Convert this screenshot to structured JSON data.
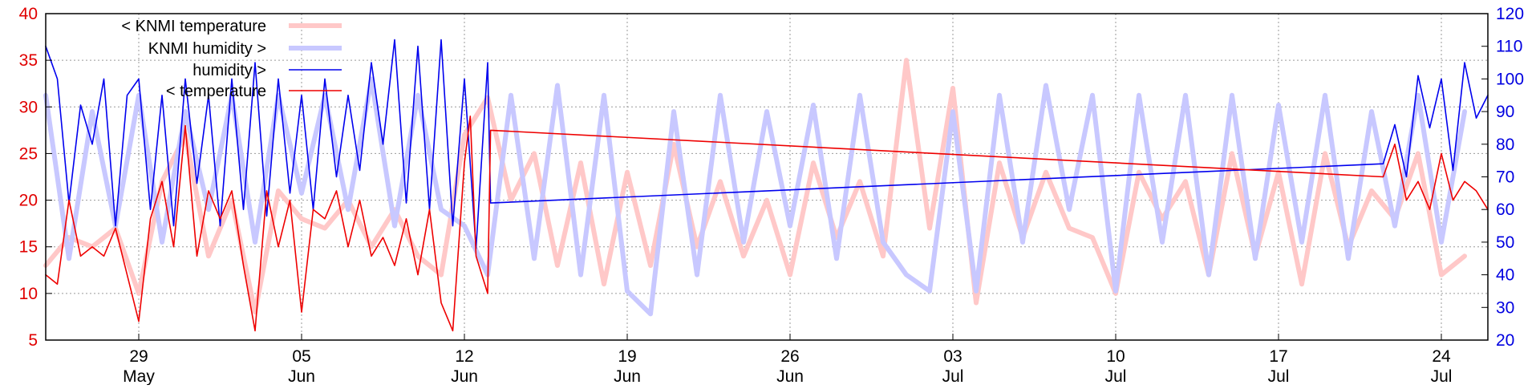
{
  "chart_data": {
    "type": "line",
    "title": "",
    "xlabel": "",
    "ylabel_left": "",
    "ylabel_right": "",
    "ylim_left": [
      5,
      40
    ],
    "ylim_right": [
      20,
      120
    ],
    "yticks_left": [
      5,
      10,
      15,
      20,
      25,
      30,
      35,
      40
    ],
    "yticks_right": [
      20,
      30,
      40,
      50,
      60,
      70,
      80,
      90,
      100,
      110,
      120
    ],
    "xlim": [
      "2023-05-25",
      "2023-07-26"
    ],
    "xticks": [
      {
        "date": "2023-05-29",
        "day": "29",
        "month": "May"
      },
      {
        "date": "2023-06-05",
        "day": "05",
        "month": "Jun"
      },
      {
        "date": "2023-06-12",
        "day": "12",
        "month": "Jun"
      },
      {
        "date": "2023-06-19",
        "day": "19",
        "month": "Jun"
      },
      {
        "date": "2023-06-26",
        "day": "26",
        "month": "Jun"
      },
      {
        "date": "2023-07-03",
        "day": "03",
        "month": "Jul"
      },
      {
        "date": "2023-07-10",
        "day": "10",
        "month": "Jul"
      },
      {
        "date": "2023-07-17",
        "day": "17",
        "month": "Jul"
      },
      {
        "date": "2023-07-24",
        "day": "24",
        "month": "Jul"
      }
    ],
    "grid": true,
    "legend_position": "top-left",
    "series": [
      {
        "name": "< KNMI temperature",
        "axis": "left",
        "color": "#ffc8c8",
        "width": "thick",
        "points": [
          [
            "2023-05-25T00",
            13
          ],
          [
            "2023-05-26T00",
            16
          ],
          [
            "2023-05-27T00",
            15
          ],
          [
            "2023-05-28T00",
            17
          ],
          [
            "2023-05-29T00",
            10
          ],
          [
            "2023-05-30T00",
            22
          ],
          [
            "2023-05-31T00",
            27
          ],
          [
            "2023-06-01T00",
            14
          ],
          [
            "2023-06-02T00",
            20
          ],
          [
            "2023-06-03T00",
            8
          ],
          [
            "2023-06-04T00",
            21
          ],
          [
            "2023-06-05T00",
            18
          ],
          [
            "2023-06-06T00",
            17
          ],
          [
            "2023-06-07T00",
            20
          ],
          [
            "2023-06-08T00",
            15
          ],
          [
            "2023-06-09T00",
            19
          ],
          [
            "2023-06-10T00",
            14
          ],
          [
            "2023-06-11T00",
            12
          ],
          [
            "2023-06-12T00",
            27
          ],
          [
            "2023-06-13T00",
            31
          ],
          [
            "2023-06-14T00",
            20
          ],
          [
            "2023-06-15T00",
            25
          ],
          [
            "2023-06-16T00",
            13
          ],
          [
            "2023-06-17T00",
            24
          ],
          [
            "2023-06-18T00",
            11
          ],
          [
            "2023-06-19T00",
            23
          ],
          [
            "2023-06-20T00",
            13
          ],
          [
            "2023-06-21T00",
            26
          ],
          [
            "2023-06-22T00",
            15
          ],
          [
            "2023-06-23T00",
            22
          ],
          [
            "2023-06-24T00",
            14
          ],
          [
            "2023-06-25T00",
            20
          ],
          [
            "2023-06-26T00",
            12
          ],
          [
            "2023-06-27T00",
            24
          ],
          [
            "2023-06-28T00",
            16
          ],
          [
            "2023-06-29T00",
            22
          ],
          [
            "2023-06-30T00",
            14
          ],
          [
            "2023-07-01T00",
            35
          ],
          [
            "2023-07-02T00",
            17
          ],
          [
            "2023-07-03T00",
            32
          ],
          [
            "2023-07-04T00",
            9
          ],
          [
            "2023-07-05T00",
            24
          ],
          [
            "2023-07-06T00",
            16
          ],
          [
            "2023-07-07T00",
            23
          ],
          [
            "2023-07-08T00",
            17
          ],
          [
            "2023-07-09T00",
            16
          ],
          [
            "2023-07-10T00",
            10
          ],
          [
            "2023-07-11T00",
            23
          ],
          [
            "2023-07-12T00",
            18
          ],
          [
            "2023-07-13T00",
            22
          ],
          [
            "2023-07-14T00",
            12
          ],
          [
            "2023-07-15T00",
            25
          ],
          [
            "2023-07-16T00",
            14
          ],
          [
            "2023-07-17T00",
            23
          ],
          [
            "2023-07-18T00",
            11
          ],
          [
            "2023-07-19T00",
            25
          ],
          [
            "2023-07-20T00",
            15
          ],
          [
            "2023-07-21T00",
            21
          ],
          [
            "2023-07-22T00",
            18
          ],
          [
            "2023-07-23T00",
            25
          ],
          [
            "2023-07-24T00",
            12
          ],
          [
            "2023-07-25T00",
            14
          ]
        ]
      },
      {
        "name": "KNMI humidity >",
        "axis": "right",
        "color": "#c8c8ff",
        "width": "thick",
        "points": [
          [
            "2023-05-25T00",
            95
          ],
          [
            "2023-05-26T00",
            45
          ],
          [
            "2023-05-27T00",
            90
          ],
          [
            "2023-05-28T00",
            55
          ],
          [
            "2023-05-29T00",
            95
          ],
          [
            "2023-05-30T00",
            50
          ],
          [
            "2023-05-31T00",
            90
          ],
          [
            "2023-06-01T00",
            60
          ],
          [
            "2023-06-02T00",
            95
          ],
          [
            "2023-06-03T00",
            50
          ],
          [
            "2023-06-04T00",
            95
          ],
          [
            "2023-06-05T00",
            65
          ],
          [
            "2023-06-06T00",
            95
          ],
          [
            "2023-06-07T00",
            60
          ],
          [
            "2023-06-08T00",
            100
          ],
          [
            "2023-06-09T00",
            55
          ],
          [
            "2023-06-10T00",
            95
          ],
          [
            "2023-06-11T00",
            60
          ],
          [
            "2023-06-12T00",
            55
          ],
          [
            "2023-06-13T00",
            40
          ],
          [
            "2023-06-14T00",
            95
          ],
          [
            "2023-06-15T00",
            45
          ],
          [
            "2023-06-16T00",
            98
          ],
          [
            "2023-06-17T00",
            40
          ],
          [
            "2023-06-18T00",
            95
          ],
          [
            "2023-06-19T00",
            35
          ],
          [
            "2023-06-20T00",
            28
          ],
          [
            "2023-06-21T00",
            90
          ],
          [
            "2023-06-22T00",
            40
          ],
          [
            "2023-06-23T00",
            95
          ],
          [
            "2023-06-24T00",
            50
          ],
          [
            "2023-06-25T00",
            90
          ],
          [
            "2023-06-26T00",
            55
          ],
          [
            "2023-06-27T00",
            92
          ],
          [
            "2023-06-28T00",
            45
          ],
          [
            "2023-06-29T00",
            95
          ],
          [
            "2023-06-30T00",
            50
          ],
          [
            "2023-07-01T00",
            40
          ],
          [
            "2023-07-02T00",
            35
          ],
          [
            "2023-07-03T00",
            90
          ],
          [
            "2023-07-04T00",
            35
          ],
          [
            "2023-07-05T00",
            95
          ],
          [
            "2023-07-06T00",
            50
          ],
          [
            "2023-07-07T00",
            98
          ],
          [
            "2023-07-08T00",
            60
          ],
          [
            "2023-07-09T00",
            95
          ],
          [
            "2023-07-10T00",
            35
          ],
          [
            "2023-07-11T00",
            95
          ],
          [
            "2023-07-12T00",
            50
          ],
          [
            "2023-07-13T00",
            95
          ],
          [
            "2023-07-14T00",
            40
          ],
          [
            "2023-07-15T00",
            95
          ],
          [
            "2023-07-16T00",
            45
          ],
          [
            "2023-07-17T00",
            92
          ],
          [
            "2023-07-18T00",
            50
          ],
          [
            "2023-07-19T00",
            95
          ],
          [
            "2023-07-20T00",
            45
          ],
          [
            "2023-07-21T00",
            90
          ],
          [
            "2023-07-22T00",
            55
          ],
          [
            "2023-07-23T00",
            95
          ],
          [
            "2023-07-24T00",
            50
          ],
          [
            "2023-07-25T00",
            90
          ]
        ]
      },
      {
        "name": "humidity >",
        "axis": "right",
        "color": "#0000ee",
        "width": "thin",
        "points": [
          [
            "2023-05-25T00",
            110
          ],
          [
            "2023-05-25T12",
            100
          ],
          [
            "2023-05-26T00",
            62
          ],
          [
            "2023-05-26T12",
            92
          ],
          [
            "2023-05-27T00",
            80
          ],
          [
            "2023-05-27T12",
            100
          ],
          [
            "2023-05-28T00",
            55
          ],
          [
            "2023-05-28T12",
            95
          ],
          [
            "2023-05-29T00",
            100
          ],
          [
            "2023-05-29T12",
            60
          ],
          [
            "2023-05-30T00",
            95
          ],
          [
            "2023-05-30T12",
            55
          ],
          [
            "2023-05-31T00",
            100
          ],
          [
            "2023-05-31T12",
            68
          ],
          [
            "2023-06-01T00",
            95
          ],
          [
            "2023-06-01T12",
            55
          ],
          [
            "2023-06-02T00",
            100
          ],
          [
            "2023-06-02T12",
            60
          ],
          [
            "2023-06-03T00",
            105
          ],
          [
            "2023-06-03T12",
            58
          ],
          [
            "2023-06-04T00",
            100
          ],
          [
            "2023-06-04T12",
            65
          ],
          [
            "2023-06-05T00",
            95
          ],
          [
            "2023-06-05T12",
            60
          ],
          [
            "2023-06-06T00",
            100
          ],
          [
            "2023-06-06T12",
            70
          ],
          [
            "2023-06-07T00",
            95
          ],
          [
            "2023-06-07T12",
            72
          ],
          [
            "2023-06-08T00",
            105
          ],
          [
            "2023-06-08T12",
            80
          ],
          [
            "2023-06-09T00",
            112
          ],
          [
            "2023-06-09T12",
            62
          ],
          [
            "2023-06-10T00",
            110
          ],
          [
            "2023-06-10T12",
            60
          ],
          [
            "2023-06-11T00",
            112
          ],
          [
            "2023-06-11T12",
            55
          ],
          [
            "2023-06-12T00",
            100
          ],
          [
            "2023-06-12T12",
            48
          ],
          [
            "2023-06-13T00",
            105
          ],
          [
            "2023-06-13T03",
            62
          ],
          [
            "2023-07-21T12",
            74
          ],
          [
            "2023-07-22T00",
            86
          ],
          [
            "2023-07-22T12",
            70
          ],
          [
            "2023-07-23T00",
            101
          ],
          [
            "2023-07-23T12",
            85
          ],
          [
            "2023-07-24T00",
            100
          ],
          [
            "2023-07-24T12",
            72
          ],
          [
            "2023-07-25T00",
            105
          ],
          [
            "2023-07-25T12",
            88
          ],
          [
            "2023-07-26T00",
            95
          ]
        ]
      },
      {
        "name": "< temperature",
        "axis": "left",
        "color": "#ee0000",
        "width": "thin",
        "points": [
          [
            "2023-05-25T00",
            12
          ],
          [
            "2023-05-25T12",
            11
          ],
          [
            "2023-05-26T00",
            20
          ],
          [
            "2023-05-26T12",
            14
          ],
          [
            "2023-05-27T00",
            15
          ],
          [
            "2023-05-27T12",
            14
          ],
          [
            "2023-05-28T00",
            17
          ],
          [
            "2023-05-28T12",
            12
          ],
          [
            "2023-05-29T00",
            7
          ],
          [
            "2023-05-29T12",
            18
          ],
          [
            "2023-05-30T00",
            22
          ],
          [
            "2023-05-30T12",
            15
          ],
          [
            "2023-05-31T00",
            28
          ],
          [
            "2023-05-31T12",
            14
          ],
          [
            "2023-06-01T00",
            21
          ],
          [
            "2023-06-01T12",
            18
          ],
          [
            "2023-06-02T00",
            21
          ],
          [
            "2023-06-02T12",
            13
          ],
          [
            "2023-06-03T00",
            6
          ],
          [
            "2023-06-03T12",
            21
          ],
          [
            "2023-06-04T00",
            15
          ],
          [
            "2023-06-04T12",
            20
          ],
          [
            "2023-06-05T00",
            8
          ],
          [
            "2023-06-05T12",
            19
          ],
          [
            "2023-06-06T00",
            18
          ],
          [
            "2023-06-06T12",
            21
          ],
          [
            "2023-06-07T00",
            15
          ],
          [
            "2023-06-07T12",
            20
          ],
          [
            "2023-06-08T00",
            14
          ],
          [
            "2023-06-08T12",
            16
          ],
          [
            "2023-06-09T00",
            13
          ],
          [
            "2023-06-09T12",
            18
          ],
          [
            "2023-06-10T00",
            12
          ],
          [
            "2023-06-10T12",
            19
          ],
          [
            "2023-06-11T00",
            9
          ],
          [
            "2023-06-11T12",
            6
          ],
          [
            "2023-06-12T00",
            24
          ],
          [
            "2023-06-12T06",
            29
          ],
          [
            "2023-06-12T12",
            14
          ],
          [
            "2023-06-13T00",
            10
          ],
          [
            "2023-06-13T03",
            27.5
          ],
          [
            "2023-07-21T12",
            22.5
          ],
          [
            "2023-07-22T00",
            26
          ],
          [
            "2023-07-22T12",
            20
          ],
          [
            "2023-07-23T00",
            22
          ],
          [
            "2023-07-23T12",
            19
          ],
          [
            "2023-07-24T00",
            25
          ],
          [
            "2023-07-24T12",
            20
          ],
          [
            "2023-07-25T00",
            22
          ],
          [
            "2023-07-25T12",
            21
          ],
          [
            "2023-07-26T00",
            19
          ]
        ]
      }
    ]
  },
  "legend": {
    "items": [
      {
        "label": "< KNMI temperature",
        "color": "#ffc8c8",
        "width": "thick"
      },
      {
        "label": "KNMI humidity >",
        "color": "#c8c8ff",
        "width": "thick"
      },
      {
        "label": "humidity >",
        "color": "#0000ee",
        "width": "thin"
      },
      {
        "label": "< temperature",
        "color": "#ee0000",
        "width": "thin"
      }
    ]
  },
  "colors": {
    "left_axis": "#e00000",
    "right_axis": "#0000e0",
    "grid": "#9a9a9a",
    "frame": "#000000"
  }
}
